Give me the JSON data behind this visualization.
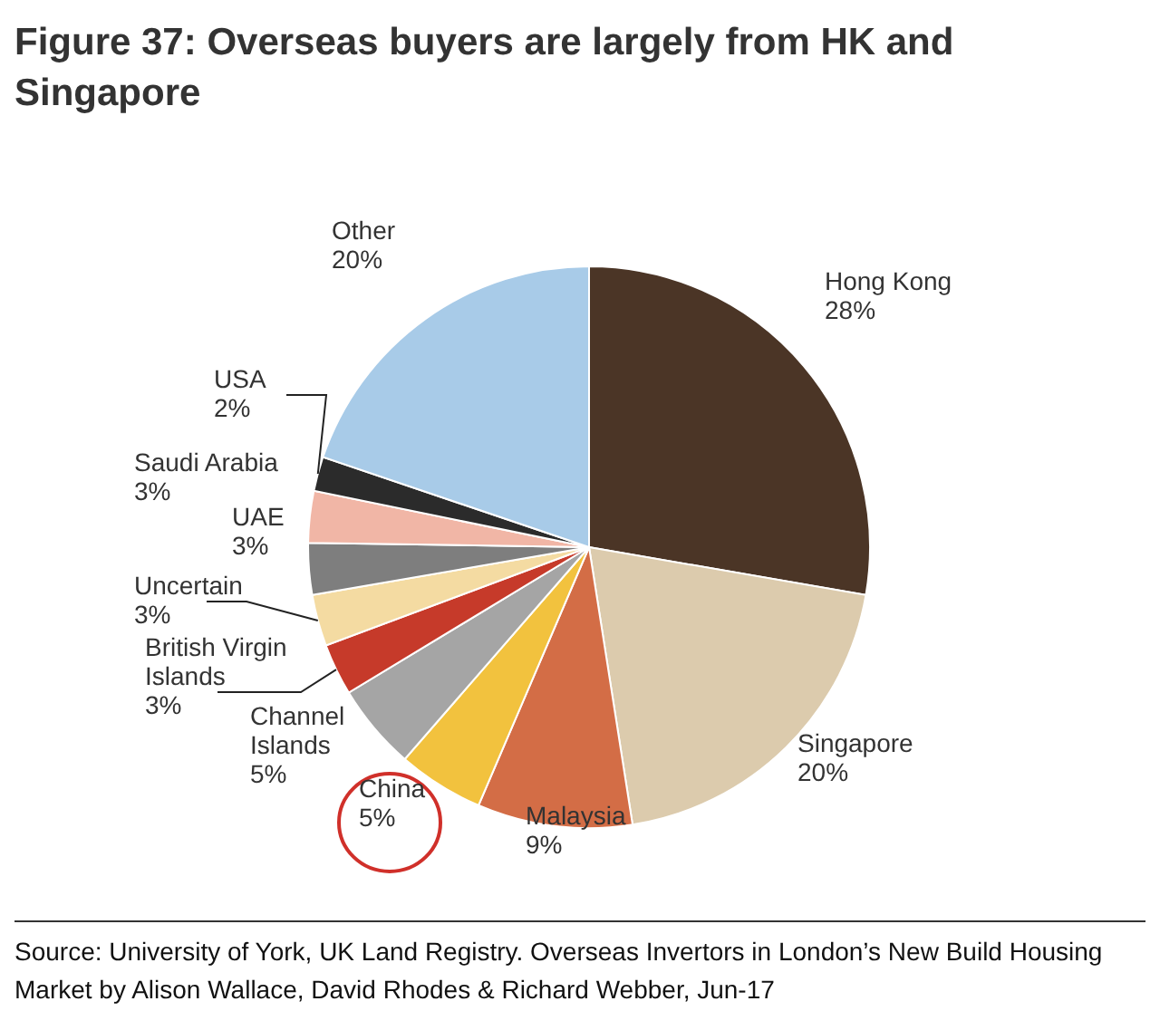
{
  "chart_data": {
    "type": "pie",
    "title": "Figure 37: Overseas buyers are largely from HK and Singapore",
    "categories": [
      "Hong Kong",
      "Singapore",
      "Malaysia",
      "China",
      "Channel Islands",
      "British Virgin Islands",
      "Uncertain",
      "UAE",
      "Saudi Arabia",
      "USA",
      "Other"
    ],
    "values": [
      28,
      20,
      9,
      5,
      5,
      3,
      3,
      3,
      3,
      2,
      20
    ],
    "value_labels": [
      "28%",
      "20%",
      "9%",
      "5%",
      "5%",
      "3%",
      "3%",
      "3%",
      "3%",
      "2%",
      "20%"
    ],
    "colors": [
      "#4b3526",
      "#dccbad",
      "#d36d46",
      "#f2c23e",
      "#a5a5a5",
      "#c63a2a",
      "#f4dba2",
      "#7e7e7e",
      "#f1b6a6",
      "#2b2b2b",
      "#a8cbe8"
    ],
    "legend": false,
    "annotations": [
      "Source: University of York, UK Land Registry. Overseas Invertors in London’s New Build Housing Market by Alison Wallace, David Rhodes & Richard Webber, Jun-17"
    ]
  }
}
